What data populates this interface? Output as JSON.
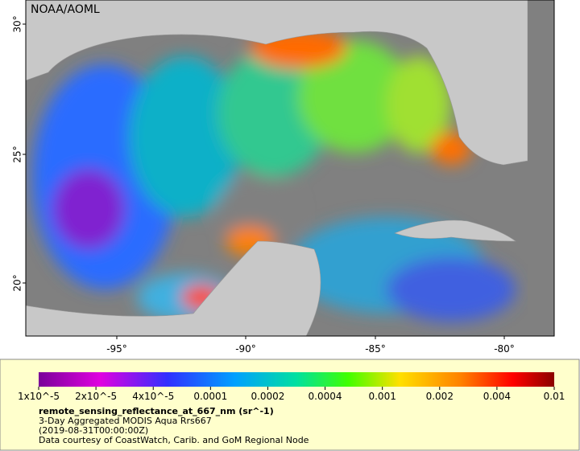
{
  "map": {
    "credit": "NOAA/AOML",
    "lat_ticks": [
      "30°",
      "25°",
      "20°"
    ],
    "lon_ticks": [
      "-95°",
      "-90°",
      "-85°",
      "-80°"
    ]
  },
  "legend": {
    "labels": [
      "1x10^-5",
      "2x10^-5",
      "4x10^-5",
      "0.0001",
      "0.0002",
      "0.0004",
      "0.001",
      "0.002",
      "0.004",
      "0.01"
    ],
    "title": "remote_sensing_reflectance_at_667_nm (sr^-1)",
    "lines": [
      "3-Day Aggregated MODIS Aqua Rrs667",
      "(2019-08-31T00:00:00Z)",
      "Data courtesy of CoastWatch, Carib. and GoM Regional Node"
    ]
  }
}
